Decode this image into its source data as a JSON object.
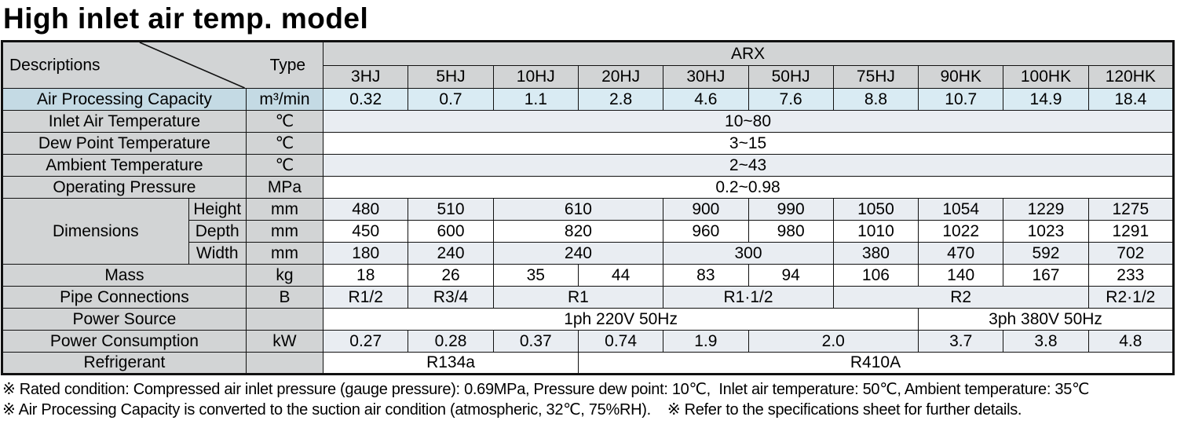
{
  "title": "High inlet air temp. model",
  "corner": {
    "descriptions": "Descriptions",
    "type": "Type"
  },
  "group_header": "ARX",
  "models": [
    "3HJ",
    "5HJ",
    "10HJ",
    "20HJ",
    "30HJ",
    "50HJ",
    "75HJ",
    "90HK",
    "100HK",
    "120HK"
  ],
  "colors": {
    "header_gray": "#d2d4d5",
    "capacity_label_blue": "#c4dae4",
    "capacity_data_blue": "#d9ebf3",
    "row_light": "#e9edf2",
    "row_white": "#ffffff",
    "border": "#111111"
  },
  "table": {
    "rows": [
      {
        "name": "header-group",
        "cells": [
          {
            "k": "corner",
            "cs": 3,
            "rs": 2
          },
          {
            "k": "group",
            "t": "ARX",
            "cs": 10
          }
        ]
      },
      {
        "name": "header-models",
        "cells": [
          {
            "k": "model",
            "t": "3HJ"
          },
          {
            "k": "model",
            "t": "5HJ"
          },
          {
            "k": "model",
            "t": "10HJ"
          },
          {
            "k": "model",
            "t": "20HJ"
          },
          {
            "k": "model",
            "t": "30HJ"
          },
          {
            "k": "model",
            "t": "50HJ"
          },
          {
            "k": "model",
            "t": "75HJ"
          },
          {
            "k": "model",
            "t": "90HK"
          },
          {
            "k": "model",
            "t": "100HK"
          },
          {
            "k": "model",
            "t": "120HK"
          }
        ]
      },
      {
        "name": "row-air-processing-capacity",
        "tint": "b",
        "cells": [
          {
            "k": "label",
            "t": "Air Processing Capacity",
            "cs": 2
          },
          {
            "k": "unit",
            "t": "m³/min"
          },
          {
            "k": "d",
            "t": "0.32"
          },
          {
            "k": "d",
            "t": "0.7"
          },
          {
            "k": "d",
            "t": "1.1"
          },
          {
            "k": "d",
            "t": "2.8"
          },
          {
            "k": "d",
            "t": "4.6"
          },
          {
            "k": "d",
            "t": "7.6"
          },
          {
            "k": "d",
            "t": "8.8"
          },
          {
            "k": "d",
            "t": "10.7"
          },
          {
            "k": "d",
            "t": "14.9"
          },
          {
            "k": "d",
            "t": "18.4"
          }
        ]
      },
      {
        "name": "row-inlet-air-temperature",
        "tint": "l",
        "cells": [
          {
            "k": "label",
            "t": "Inlet Air Temperature",
            "cs": 2
          },
          {
            "k": "unit",
            "t": "℃"
          },
          {
            "k": "d",
            "t": "10~80",
            "cs": 10
          }
        ]
      },
      {
        "name": "row-dew-point-temperature",
        "tint": "w",
        "cells": [
          {
            "k": "label",
            "t": "Dew Point Temperature",
            "cs": 2
          },
          {
            "k": "unit",
            "t": "℃"
          },
          {
            "k": "d",
            "t": "3~15",
            "cs": 10
          }
        ]
      },
      {
        "name": "row-ambient-temperature",
        "tint": "l",
        "cells": [
          {
            "k": "label",
            "t": "Ambient Temperature",
            "cs": 2
          },
          {
            "k": "unit",
            "t": "℃"
          },
          {
            "k": "d",
            "t": "2~43",
            "cs": 10
          }
        ]
      },
      {
        "name": "row-operating-pressure",
        "tint": "w",
        "cells": [
          {
            "k": "label",
            "t": "Operating Pressure",
            "cs": 2
          },
          {
            "k": "unit",
            "t": "MPa"
          },
          {
            "k": "d",
            "t": "0.2~0.98",
            "cs": 10
          }
        ]
      },
      {
        "name": "row-dimensions-height",
        "tint": "l",
        "cells": [
          {
            "k": "label",
            "t": "Dimensions",
            "rs": 3
          },
          {
            "k": "sub",
            "t": "Height"
          },
          {
            "k": "unit",
            "t": "mm"
          },
          {
            "k": "d",
            "t": "480"
          },
          {
            "k": "d",
            "t": "510"
          },
          {
            "k": "d",
            "t": "610",
            "cs": 2
          },
          {
            "k": "d",
            "t": "900"
          },
          {
            "k": "d",
            "t": "990"
          },
          {
            "k": "d",
            "t": "1050"
          },
          {
            "k": "d",
            "t": "1054"
          },
          {
            "k": "d",
            "t": "1229"
          },
          {
            "k": "d",
            "t": "1275"
          }
        ]
      },
      {
        "name": "row-dimensions-depth",
        "tint": "w",
        "cells": [
          {
            "k": "sub",
            "t": "Depth"
          },
          {
            "k": "unit",
            "t": "mm"
          },
          {
            "k": "d",
            "t": "450"
          },
          {
            "k": "d",
            "t": "600"
          },
          {
            "k": "d",
            "t": "820",
            "cs": 2
          },
          {
            "k": "d",
            "t": "960"
          },
          {
            "k": "d",
            "t": "980"
          },
          {
            "k": "d",
            "t": "1010"
          },
          {
            "k": "d",
            "t": "1022"
          },
          {
            "k": "d",
            "t": "1023"
          },
          {
            "k": "d",
            "t": "1291"
          }
        ]
      },
      {
        "name": "row-dimensions-width",
        "tint": "l",
        "cells": [
          {
            "k": "sub",
            "t": "Width"
          },
          {
            "k": "unit",
            "t": "mm"
          },
          {
            "k": "d",
            "t": "180"
          },
          {
            "k": "d",
            "t": "240"
          },
          {
            "k": "d",
            "t": "240",
            "cs": 2
          },
          {
            "k": "d",
            "t": "300",
            "cs": 2
          },
          {
            "k": "d",
            "t": "380"
          },
          {
            "k": "d",
            "t": "470"
          },
          {
            "k": "d",
            "t": "592"
          },
          {
            "k": "d",
            "t": "702"
          }
        ]
      },
      {
        "name": "row-mass",
        "tint": "w",
        "cells": [
          {
            "k": "label",
            "t": "Mass",
            "cs": 2
          },
          {
            "k": "unit",
            "t": "kg"
          },
          {
            "k": "d",
            "t": "18"
          },
          {
            "k": "d",
            "t": "26"
          },
          {
            "k": "d",
            "t": "35"
          },
          {
            "k": "d",
            "t": "44"
          },
          {
            "k": "d",
            "t": "83"
          },
          {
            "k": "d",
            "t": "94"
          },
          {
            "k": "d",
            "t": "106"
          },
          {
            "k": "d",
            "t": "140"
          },
          {
            "k": "d",
            "t": "167"
          },
          {
            "k": "d",
            "t": "233"
          }
        ]
      },
      {
        "name": "row-pipe-connections",
        "tint": "l",
        "cells": [
          {
            "k": "label",
            "t": "Pipe Connections",
            "cs": 2
          },
          {
            "k": "unit",
            "t": "B"
          },
          {
            "k": "d",
            "t": "R1/2"
          },
          {
            "k": "d",
            "t": "R3/4"
          },
          {
            "k": "d",
            "t": "R1",
            "cs": 2
          },
          {
            "k": "d",
            "t": "R1·1/2",
            "cs": 2
          },
          {
            "k": "d",
            "t": "R2",
            "cs": 3
          },
          {
            "k": "d",
            "t": "R2·1/2"
          }
        ]
      },
      {
        "name": "row-power-source",
        "tint": "w",
        "cells": [
          {
            "k": "label",
            "t": "Power Source",
            "cs": 2
          },
          {
            "k": "unit",
            "t": ""
          },
          {
            "k": "d",
            "t": "1ph 220V 50Hz",
            "cs": 7
          },
          {
            "k": "d",
            "t": "3ph 380V 50Hz",
            "cs": 3
          }
        ]
      },
      {
        "name": "row-power-consumption",
        "tint": "l",
        "cells": [
          {
            "k": "label",
            "t": "Power Consumption",
            "cs": 2
          },
          {
            "k": "unit",
            "t": "kW"
          },
          {
            "k": "d",
            "t": "0.27"
          },
          {
            "k": "d",
            "t": "0.28"
          },
          {
            "k": "d",
            "t": "0.37"
          },
          {
            "k": "d",
            "t": "0.74"
          },
          {
            "k": "d",
            "t": "1.9"
          },
          {
            "k": "d",
            "t": "2.0",
            "cs": 2
          },
          {
            "k": "d",
            "t": "3.7"
          },
          {
            "k": "d",
            "t": "3.8"
          },
          {
            "k": "d",
            "t": "4.8"
          }
        ]
      },
      {
        "name": "row-refrigerant",
        "tint": "w",
        "cells": [
          {
            "k": "label",
            "t": "Refrigerant",
            "cs": 2
          },
          {
            "k": "unit",
            "t": ""
          },
          {
            "k": "d",
            "t": "R134a",
            "cs": 3
          },
          {
            "k": "d",
            "t": "R410A",
            "cs": 7
          }
        ]
      }
    ]
  },
  "footnotes": [
    "※ Rated condition: Compressed air inlet pressure (gauge pressure): 0.69MPa, Pressure dew point: 10℃,  Inlet air temperature: 50℃, Ambient temperature: 35℃",
    "※ Air Processing Capacity is converted to the suction air condition (atmospheric, 32℃, 75%RH).    ※ Refer to the specifications sheet for further details."
  ]
}
